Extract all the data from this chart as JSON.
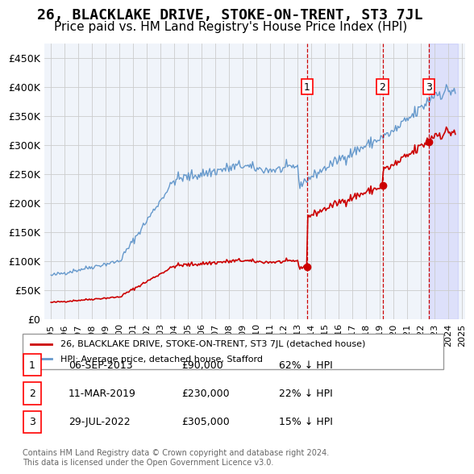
{
  "title": "26, BLACKLAKE DRIVE, STOKE-ON-TRENT, ST3 7JL",
  "subtitle": "Price paid vs. HM Land Registry's House Price Index (HPI)",
  "ylabel": "",
  "ylim": [
    0,
    475000
  ],
  "yticks": [
    0,
    50000,
    100000,
    150000,
    200000,
    250000,
    300000,
    350000,
    400000,
    450000
  ],
  "ytick_labels": [
    "£0",
    "£50K",
    "£100K",
    "£150K",
    "£200K",
    "£250K",
    "£300K",
    "£350K",
    "£400K",
    "£450K"
  ],
  "sale_dates": [
    2013.67,
    2019.19,
    2022.57
  ],
  "sale_prices": [
    90000,
    230000,
    305000
  ],
  "sale_labels": [
    "1",
    "2",
    "3"
  ],
  "sale_label_dates": [
    "06-SEP-2013",
    "11-MAR-2019",
    "29-JUL-2022"
  ],
  "sale_label_prices": [
    "£90,000",
    "£230,000",
    "£305,000"
  ],
  "sale_label_pct": [
    "62% ↓ HPI",
    "22% ↓ HPI",
    "15% ↓ HPI"
  ],
  "red_line_color": "#cc0000",
  "blue_line_color": "#6699cc",
  "background_color": "#ffffff",
  "grid_color": "#cccccc",
  "legend_label_red": "26, BLACKLAKE DRIVE, STOKE-ON-TRENT, ST3 7JL (detached house)",
  "legend_label_blue": "HPI: Average price, detached house, Stafford",
  "footnote": "Contains HM Land Registry data © Crown copyright and database right 2024.\nThis data is licensed under the Open Government Licence v3.0.",
  "title_fontsize": 13,
  "subtitle_fontsize": 11
}
